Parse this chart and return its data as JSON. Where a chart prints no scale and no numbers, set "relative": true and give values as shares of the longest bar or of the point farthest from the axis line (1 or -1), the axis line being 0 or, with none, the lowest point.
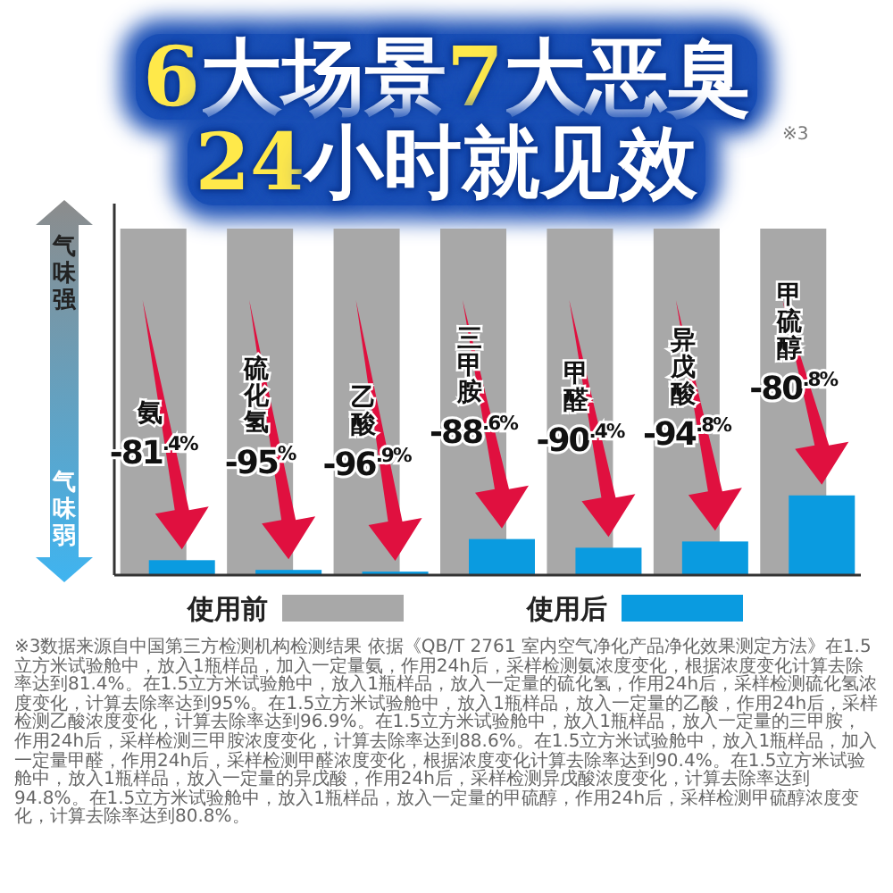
{
  "chart_data": {
    "type": "bar",
    "title": "6大场景7大恶臭",
    "subtitle": "24小时就见效",
    "relative": true,
    "categories": [
      "氨",
      "硫化氢",
      "乙酸",
      "三甲胺",
      "甲醛",
      "异戊酸",
      "甲硫醇"
    ],
    "series": [
      {
        "name": "使用前",
        "color": "#a8a8a8",
        "values": [
          1,
          1,
          1,
          1,
          1,
          1,
          1
        ]
      },
      {
        "name": "使用后",
        "color": "#0a9be0",
        "values": [
          0.043,
          0.015,
          0.01,
          0.104,
          0.079,
          0.097,
          0.23
        ]
      }
    ],
    "legend": "bottom",
    "annotations": [
      {
        "text": "-81$^{.4%}$",
        "x": "氨",
        "y": 0.043
      },
      {
        "text": "-95$^{%}$",
        "x": "硫化氢",
        "y": 0.015
      },
      {
        "text": "-96$^{.9%}$",
        "x": "乙酸",
        "y": 0.01
      },
      {
        "text": "-88$^{.6%}$",
        "x": "三甲胺",
        "y": 0.104
      },
      {
        "text": "-90$^{.4%}$",
        "x": "甲醛",
        "y": 0.079
      },
      {
        "text": "-94$^{.8%}$",
        "x": "异戊酸",
        "y": 0.097
      },
      {
        "text": "-80$^{.8%}$",
        "x": "甲硫醇",
        "y": 0.23
      },
      "气味强",
      "气味弱",
      "※3",
      "※3数据来源自中国第三方检测机构检测结果 依据《QB/T 2761 室内空气净化产品净化效果测定方法》在1.5立方米试验舱中，放入1瓶样品，加入一定量氨，作用24h后，采样检测氨浓度变化，根据浓度变化计算去除率达到81.4%。在1.5立方米试验舱中，放入1瓶样品，放入一定量的硫化氢，作用24h后，采样检测硫化氢浓度变化，计算去除率达到95%。在1.5立方米试验舱中，放入1瓶样品，放入一定量的乙酸，作用24h后，采样检测乙酸浓度变化，计算去除率达到96.9%。在1.5立方米试验舱中，放入1瓶样品，放入一定量的三甲胺，作用24h后，采样检测三甲胺浓度变化，计算去除率达到88.6%。在1.5立方米试验舱中，放入1瓶样品，加入一定量甲醛，作用24h后，采样检测甲醛浓度变化，根据浓度变化计算去除率达到90.4%。在1.5立方米试验舱中，放入1瓶样品，放入一定量的异戊酸，作用24h后，采样检测异戊酸浓度变化，计算去除率达到94.8%。在1.5立方米试验舱中，放入1瓶样品，放入一定量的甲硫醇，作用24h后，采样检测甲硫醇浓度变化，计算去除率达到80.8%。"
    ]
  }
}
